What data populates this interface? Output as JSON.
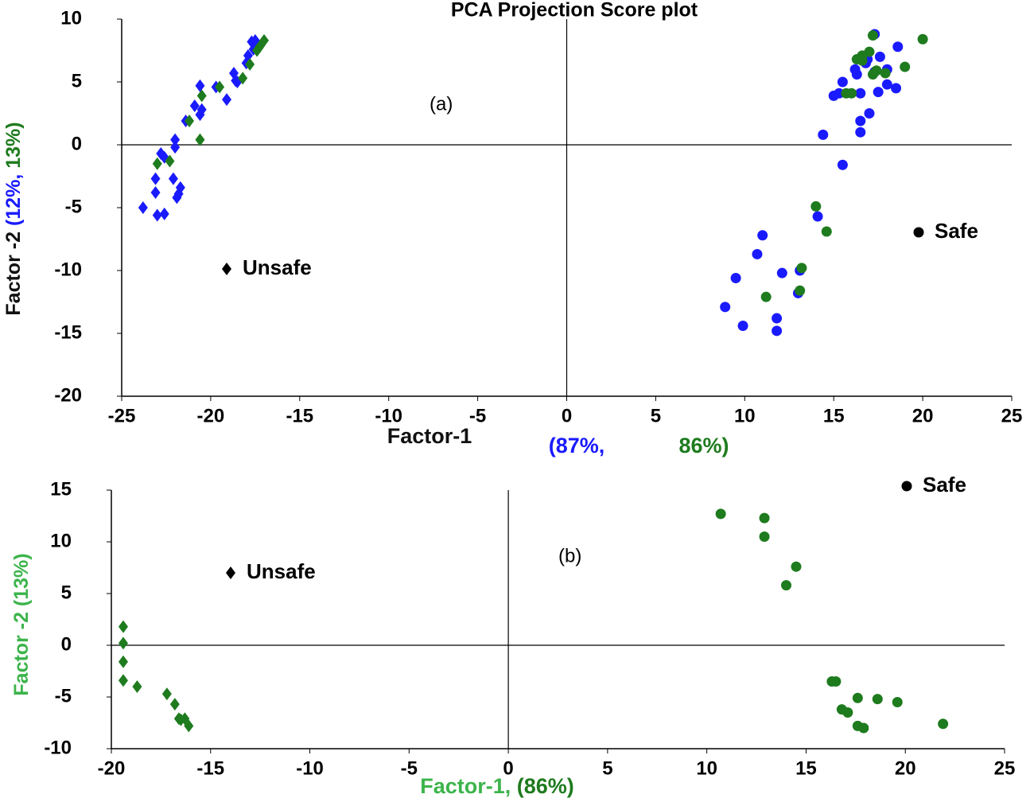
{
  "chart_data": [
    {
      "type": "scatter",
      "title": "PCA Projection Score plot",
      "xlabel_parts": [
        {
          "text": "Factor-1",
          "color": "#111111"
        },
        {
          "text": "(87%,",
          "color": "#1a1aff"
        },
        {
          "text": "86%)",
          "color": "#1e7b1e"
        }
      ],
      "ylabel_parts": [
        {
          "text": "Factor -2",
          "color": "#111111"
        },
        {
          "text": "(12%,",
          "color": "#1a1aff"
        },
        {
          "text": "13%)",
          "color": "#1e7b1e"
        }
      ],
      "annotations": [
        "(a)",
        "Unsafe",
        "Safe"
      ],
      "xlim": [
        -25,
        25
      ],
      "xticks": [
        -25,
        -20,
        -15,
        -10,
        -5,
        0,
        5,
        10,
        15,
        20,
        25
      ],
      "ylim": [
        -20,
        10
      ],
      "yticks": [
        -20,
        -15,
        -10,
        -5,
        0,
        5,
        10
      ],
      "series": [
        {
          "color": "#1a1aff",
          "marker": "diamond",
          "x": [
            -23.8,
            -23.1,
            -23.1,
            -23.0,
            -22.6,
            -22.8,
            -22.6,
            -22.1,
            -21.9,
            -21.8,
            -21.7,
            -22.0,
            -22.0,
            -21.4,
            -20.9,
            -20.6,
            -20.6,
            -20.5,
            -19.7,
            -19.1,
            -18.7,
            -18.6,
            -18.5,
            -18.0,
            -17.9,
            -17.7,
            -17.6,
            -17.5
          ],
          "values": [
            -5.0,
            -3.8,
            -2.7,
            -5.6,
            -5.5,
            -0.7,
            -1.0,
            -2.7,
            -4.2,
            -3.9,
            -3.4,
            0.4,
            -0.2,
            1.9,
            3.1,
            4.7,
            2.4,
            2.8,
            4.6,
            3.6,
            5.7,
            5.1,
            5.0,
            6.5,
            7.1,
            8.2,
            7.6,
            8.3
          ]
        },
        {
          "color": "#1e7b1e",
          "marker": "diamond",
          "x": [
            -23.0,
            -22.3,
            -21.2,
            -20.5,
            -20.6,
            -19.5,
            -18.2,
            -17.8,
            -17.4,
            -17.2,
            -17.0,
            -17.3
          ],
          "values": [
            -1.5,
            -1.3,
            1.9,
            3.9,
            0.4,
            4.6,
            5.3,
            6.4,
            7.5,
            7.9,
            8.3,
            7.7
          ]
        },
        {
          "color": "#1a1aff",
          "marker": "circle",
          "x": [
            14.4,
            15.0,
            15.3,
            15.5,
            15.5,
            16.2,
            16.3,
            16.5,
            16.5,
            16.5,
            16.8,
            17.0,
            17.3,
            17.3,
            17.5,
            17.6,
            18.0,
            18.0,
            18.5,
            18.6,
            16.9,
            14.1,
            11.0,
            10.7,
            9.5,
            8.9,
            9.9,
            12.1,
            13.1,
            13.0,
            11.8,
            11.8
          ],
          "values": [
            0.8,
            3.9,
            4.1,
            5.0,
            -1.6,
            6.0,
            5.6,
            4.1,
            1.9,
            1.0,
            6.5,
            2.5,
            5.8,
            8.8,
            4.2,
            7.0,
            6.0,
            4.8,
            4.5,
            7.8,
            6.8,
            -5.7,
            -7.2,
            -8.7,
            -10.6,
            -12.9,
            -14.4,
            -10.2,
            -10.0,
            -11.8,
            -13.8,
            -14.8
          ]
        },
        {
          "color": "#1e7b1e",
          "marker": "circle",
          "x": [
            14.0,
            14.6,
            13.2,
            13.1,
            11.2,
            15.7,
            16.0,
            16.3,
            16.6,
            17.0,
            17.2,
            17.2,
            17.4,
            17.9,
            19.0,
            20.0,
            16.6
          ],
          "values": [
            -4.9,
            -6.9,
            -9.8,
            -11.6,
            -12.1,
            4.1,
            4.1,
            6.8,
            7.1,
            7.4,
            8.7,
            5.6,
            5.9,
            5.7,
            6.2,
            8.4,
            6.7
          ]
        }
      ]
    },
    {
      "type": "scatter",
      "xlabel_parts": [
        {
          "text": "Factor-1,",
          "color": "#3cb44b"
        },
        {
          "text": "(86%)",
          "color": "#1e7b1e"
        }
      ],
      "ylabel_parts": [
        {
          "text": "Factor -2 (13%)",
          "color": "#3cb44b"
        }
      ],
      "annotations": [
        "(b)",
        "Unsafe",
        "Safe"
      ],
      "xlim": [
        -20,
        25
      ],
      "xticks": [
        -20,
        -15,
        -10,
        -5,
        0,
        5,
        10,
        15,
        20,
        25
      ],
      "ylim": [
        -10,
        15
      ],
      "yticks": [
        -10,
        -5,
        0,
        5,
        10,
        15
      ],
      "series": [
        {
          "color": "#1e7b1e",
          "marker": "diamond",
          "x": [
            -19.4,
            -19.4,
            -19.4,
            -19.4,
            -18.7,
            -17.2,
            -16.8,
            -16.5,
            -16.3,
            -16.1,
            -16.6
          ],
          "values": [
            1.8,
            0.2,
            -1.6,
            -3.4,
            -4.0,
            -4.7,
            -5.7,
            -7.2,
            -7.1,
            -7.8,
            -7.1
          ]
        },
        {
          "color": "#1e7b1e",
          "marker": "circle",
          "x": [
            10.7,
            12.9,
            12.9,
            14.5,
            14.0,
            16.3,
            16.5,
            16.8,
            17.1,
            17.6,
            17.6,
            17.9,
            18.6,
            19.6,
            21.9
          ],
          "values": [
            12.7,
            12.3,
            10.5,
            7.6,
            5.8,
            -3.5,
            -3.5,
            -6.2,
            -6.5,
            -5.1,
            -7.8,
            -8.0,
            -5.2,
            -5.5,
            -7.6
          ]
        }
      ]
    }
  ]
}
